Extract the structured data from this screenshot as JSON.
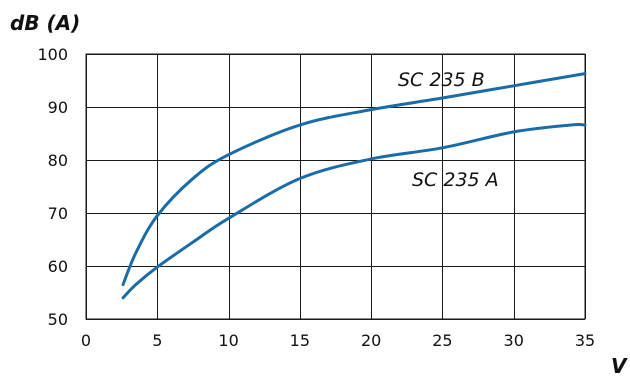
{
  "chart_data": {
    "type": "line",
    "title": "",
    "ylabel": "dB (A)",
    "xlabel": "V",
    "xlim": [
      0,
      35
    ],
    "ylim": [
      50,
      100
    ],
    "x_ticks": [
      0,
      5,
      10,
      15,
      20,
      25,
      30,
      35
    ],
    "y_ticks": [
      50,
      60,
      70,
      80,
      90,
      100
    ],
    "x_tick_labels": [
      "0",
      "5",
      "10",
      "15",
      "20",
      "25",
      "30",
      "35"
    ],
    "y_tick_labels": [
      "50",
      "60",
      "70",
      "80",
      "90",
      "100"
    ],
    "grid": true,
    "legend": "inline labels",
    "line_color": "#1a6ca8",
    "series": [
      {
        "name": "SC 235 B",
        "x": [
          2.6,
          3.5,
          5,
          7.5,
          10,
          15,
          20,
          25,
          30,
          35
        ],
        "y": [
          56.5,
          62.5,
          69.5,
          76.5,
          81.0,
          86.6,
          89.5,
          91.7,
          94.0,
          96.3
        ]
      },
      {
        "name": "SC 235 A",
        "x": [
          2.6,
          3.5,
          5,
          7.5,
          10,
          15,
          20,
          25,
          30,
          34,
          35
        ],
        "y": [
          54.0,
          56.5,
          59.8,
          64.5,
          69.0,
          76.5,
          80.2,
          82.3,
          85.3,
          86.6,
          86.6
        ]
      }
    ]
  }
}
